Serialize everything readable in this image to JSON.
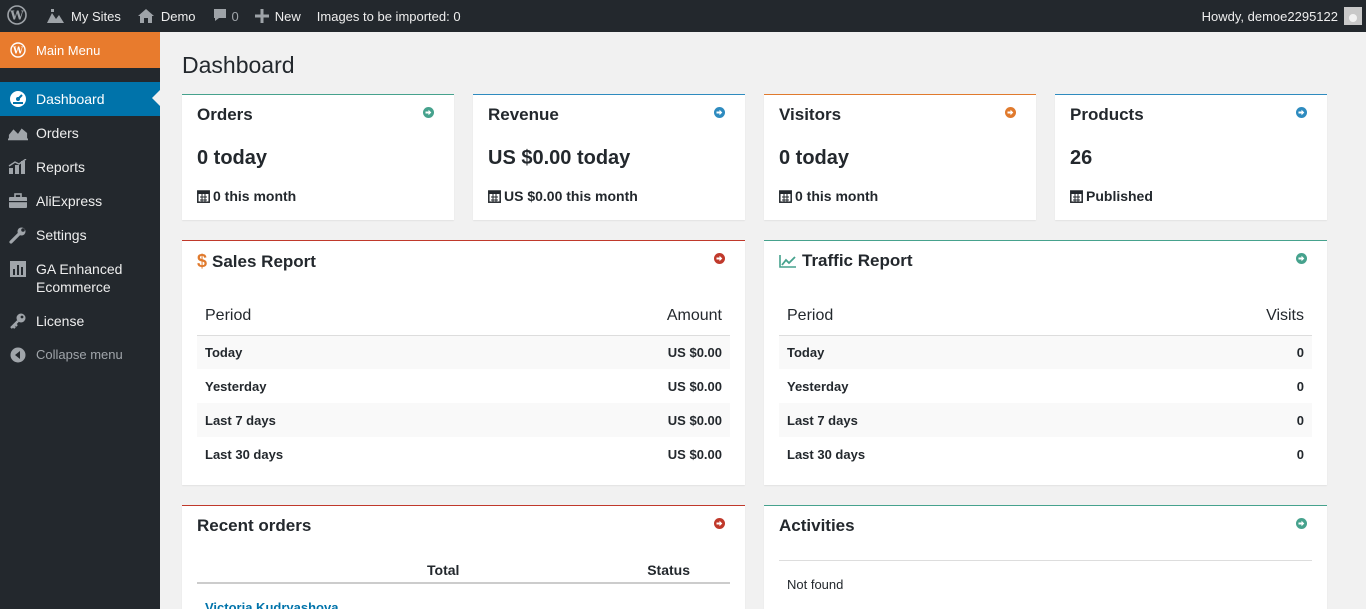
{
  "admin_bar": {
    "my_sites": "My Sites",
    "site_name": "Demo",
    "comments_count": "0",
    "new_label": "New",
    "import_status": "Images to be imported: 0",
    "greeting": "Howdy, demoe2295122"
  },
  "sidebar": {
    "header": "Main Menu",
    "items": [
      {
        "label": "Dashboard",
        "icon": "dashboard-icon"
      },
      {
        "label": "Orders",
        "icon": "area-chart-icon"
      },
      {
        "label": "Reports",
        "icon": "chart-icon"
      },
      {
        "label": "AliExpress",
        "icon": "briefcase-icon"
      },
      {
        "label": "Settings",
        "icon": "wrench-icon"
      },
      {
        "label": "GA Enhanced Ecommerce",
        "icon": "analytics-icon"
      },
      {
        "label": "License",
        "icon": "key-icon"
      }
    ],
    "collapse": "Collapse menu"
  },
  "page": {
    "title": "Dashboard"
  },
  "cards": {
    "orders": {
      "title": "Orders",
      "big": "0 today",
      "small": "0 this month",
      "accent": "#46a28d"
    },
    "revenue": {
      "title": "Revenue",
      "big": "US $0.00 today",
      "small": "US $0.00 this month",
      "accent": "#2e8bbf"
    },
    "visitors": {
      "title": "Visitors",
      "big": "0 today",
      "small": "0 this month",
      "accent": "#e07a2d"
    },
    "products": {
      "title": "Products",
      "big": "26",
      "small": "Published",
      "accent": "#2e8bbf"
    }
  },
  "sales_report": {
    "title": "Sales Report",
    "accent": "#c0392b",
    "headers": {
      "period": "Period",
      "amount": "Amount"
    },
    "rows": [
      {
        "period": "Today",
        "value": "US $0.00"
      },
      {
        "period": "Yesterday",
        "value": "US $0.00"
      },
      {
        "period": "Last 7 days",
        "value": "US $0.00"
      },
      {
        "period": "Last 30 days",
        "value": "US $0.00"
      }
    ]
  },
  "traffic_report": {
    "title": "Traffic Report",
    "accent": "#46a28d",
    "headers": {
      "period": "Period",
      "visits": "Visits"
    },
    "rows": [
      {
        "period": "Today",
        "value": "0"
      },
      {
        "period": "Yesterday",
        "value": "0"
      },
      {
        "period": "Last 7 days",
        "value": "0"
      },
      {
        "period": "Last 30 days",
        "value": "0"
      }
    ]
  },
  "recent_orders": {
    "title": "Recent orders",
    "headers": {
      "total": "Total",
      "status": "Status"
    },
    "first_customer": "Victoria Kudryashova"
  },
  "activities": {
    "title": "Activities",
    "empty": "Not found"
  }
}
